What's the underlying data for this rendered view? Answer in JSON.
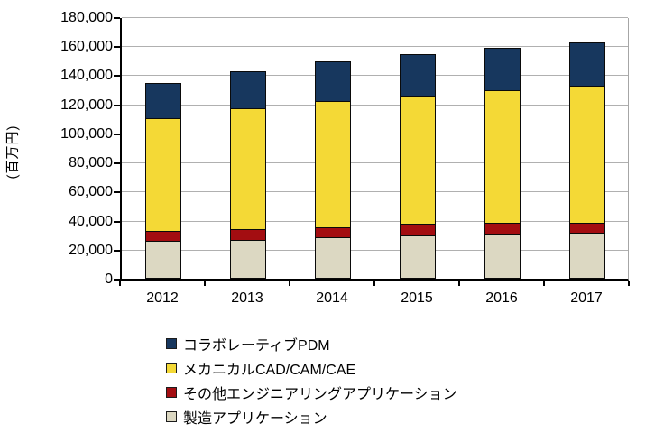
{
  "chart_data": {
    "type": "bar",
    "stacked": true,
    "title": "",
    "xlabel": "",
    "ylabel": "(百万円)",
    "ylim": [
      0,
      180000
    ],
    "ytick_step": 20000,
    "ytick_labels": [
      "0",
      "20,000",
      "40,000",
      "60,000",
      "80,000",
      "100,000",
      "120,000",
      "140,000",
      "160,000",
      "180,000"
    ],
    "grid": true,
    "legend_position": "bottom-left",
    "categories": [
      "2012",
      "2013",
      "2014",
      "2015",
      "2016",
      "2017"
    ],
    "series": [
      {
        "name": "製造アプリケーション",
        "color": "#DCD8C2",
        "values": [
          26000,
          27000,
          28500,
          29500,
          31000,
          31500
        ]
      },
      {
        "name": "その他エンジニアリングアプリケーション",
        "color": "#A30D11",
        "values": [
          7500,
          8000,
          8000,
          9000,
          8500,
          8000
        ]
      },
      {
        "name": "メカニカルCAD/CAM/CAE",
        "color": "#F4D936",
        "values": [
          79000,
          84000,
          87500,
          89500,
          92000,
          95000
        ]
      },
      {
        "name": "コラボレーティブPDM",
        "color": "#17375E",
        "values": [
          25000,
          26500,
          28000,
          29000,
          30000,
          31000
        ]
      }
    ],
    "totals": [
      137500,
      145500,
      152000,
      157000,
      161500,
      165500
    ],
    "legend": [
      {
        "label": "コラボレーティブPDM",
        "color": "#17375E"
      },
      {
        "label": "メカニカルCAD/CAM/CAE",
        "color": "#F4D936"
      },
      {
        "label": "その他エンジニアリングアプリケーション",
        "color": "#A30D11"
      },
      {
        "label": "製造アプリケーション",
        "color": "#DCD8C2"
      }
    ]
  }
}
